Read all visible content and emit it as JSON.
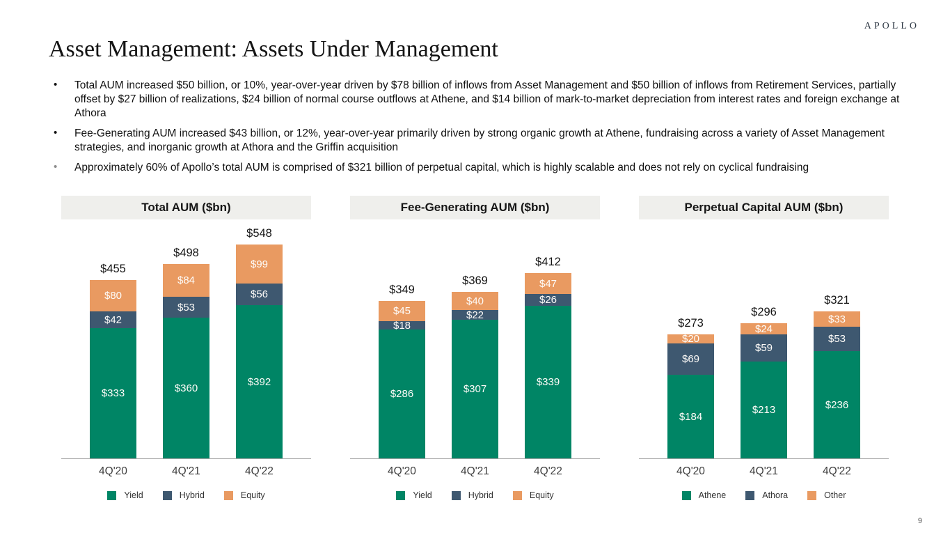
{
  "logo": "APOLLO",
  "page_number": "9",
  "title": "Asset Management: Assets Under Management",
  "bullets": [
    {
      "text": "Total AUM increased $50 billion, or 10%, year-over-year driven by $78 billion of inflows from Asset Management and $50 billion of inflows from Retirement Services, partially offset by $27 billion of realizations, $24 billion of normal course outflows at Athene, and $14 billion of mark-to-market depreciation from interest rates and foreign exchange at Athora"
    },
    {
      "text": "Fee-Generating AUM increased $43 billion, or 12%, year-over-year primarily driven by strong organic growth at Athene, fundraising across a variety of Asset Management strategies, and inorganic growth at Athora and the Griffin acquisition"
    },
    {
      "text": "Approximately 60% of Apollo’s total AUM is comprised of $321 billion of perpetual capital, which is highly scalable and does not rely on cyclical fundraising"
    }
  ],
  "colors": {
    "palette": [
      "#008565",
      "#3E5870",
      "#E99A61"
    ],
    "header_bg": "#EFEFEC",
    "axis_line": "#A6A6A6"
  },
  "chart_data": [
    {
      "type": "bar",
      "stacked": true,
      "title": "Total AUM ($bn)",
      "categories": [
        "4Q'20",
        "4Q'21",
        "4Q'22"
      ],
      "series": [
        {
          "name": "Yield",
          "values": [
            333,
            360,
            392
          ]
        },
        {
          "name": "Hybrid",
          "values": [
            42,
            53,
            56
          ]
        },
        {
          "name": "Equity",
          "values": [
            80,
            84,
            99
          ]
        }
      ],
      "totals": [
        455,
        498,
        548
      ],
      "legend": [
        "Yield",
        "Hybrid",
        "Equity"
      ],
      "value_prefix": "$",
      "ylim": [
        0,
        610
      ],
      "grid": false,
      "legend_position": "bottom"
    },
    {
      "type": "bar",
      "stacked": true,
      "title": "Fee-Generating AUM ($bn)",
      "categories": [
        "4Q'20",
        "4Q'21",
        "4Q'22"
      ],
      "series": [
        {
          "name": "Yield",
          "values": [
            286,
            307,
            339
          ]
        },
        {
          "name": "Hybrid",
          "values": [
            18,
            22,
            26
          ]
        },
        {
          "name": "Equity",
          "values": [
            45,
            40,
            47
          ]
        }
      ],
      "totals": [
        349,
        369,
        412
      ],
      "legend": [
        "Yield",
        "Hybrid",
        "Equity"
      ],
      "value_prefix": "$",
      "ylim": [
        0,
        530
      ],
      "grid": false,
      "legend_position": "bottom"
    },
    {
      "type": "bar",
      "stacked": true,
      "title": "Perpetual Capital AUM ($bn)",
      "categories": [
        "4Q'20",
        "4Q'21",
        "4Q'22"
      ],
      "series": [
        {
          "name": "Athene",
          "values": [
            184,
            213,
            236
          ]
        },
        {
          "name": "Athora",
          "values": [
            69,
            59,
            53
          ]
        },
        {
          "name": "Other",
          "values": [
            20,
            24,
            33
          ]
        }
      ],
      "totals": [
        273,
        296,
        321
      ],
      "legend": [
        "Athene",
        "Athora",
        "Other"
      ],
      "value_prefix": "$",
      "ylim": [
        0,
        525
      ],
      "grid": false,
      "legend_position": "bottom"
    }
  ]
}
